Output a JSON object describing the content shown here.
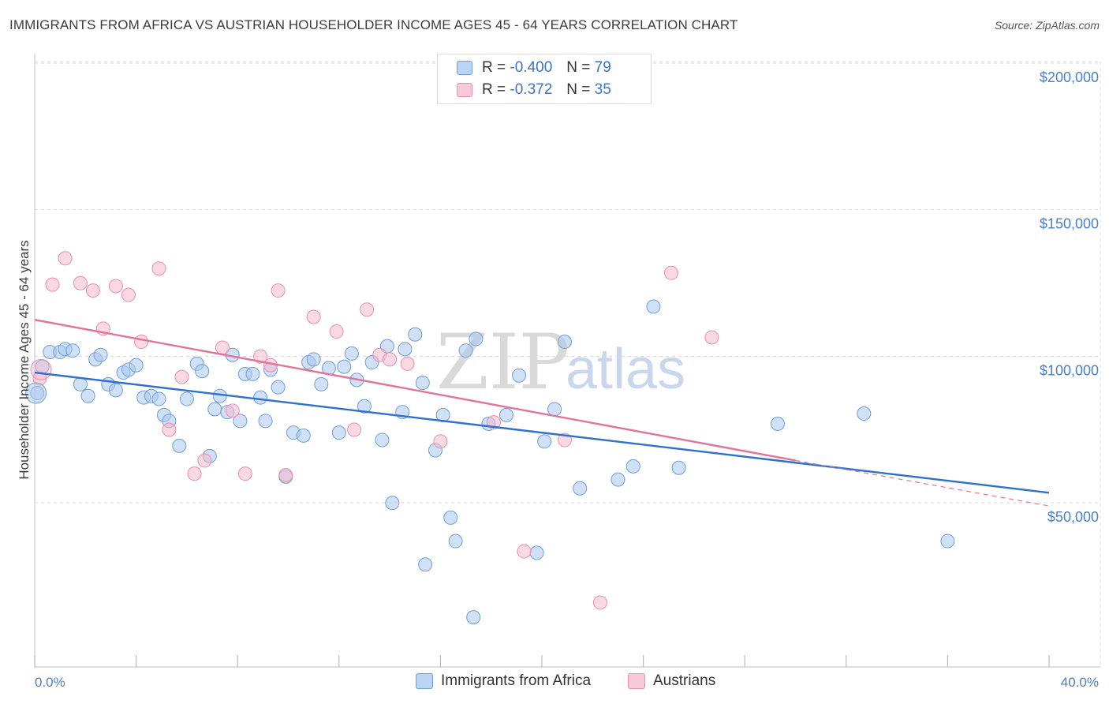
{
  "title": "IMMIGRANTS FROM AFRICA VS AUSTRIAN HOUSEHOLDER INCOME AGES 45 - 64 YEARS CORRELATION CHART",
  "source": "Source: ZipAtlas.com",
  "watermark": {
    "zip": "ZIP",
    "atlas": "atlas"
  },
  "colors": {
    "blue_fill": "#a9c8ef",
    "blue_stroke": "#6f9fd8",
    "blue_line": "#2f6fd0",
    "pink_fill": "#f6b9cc",
    "pink_stroke": "#ea8fae",
    "pink_line": "#e2739a",
    "tick_text": "#4a7fc9",
    "grid": "#d9d9d9"
  },
  "legend": {
    "rows": [
      {
        "r_label": "R = ",
        "r_value": "-0.400",
        "n_label": "N = ",
        "n_value": "79"
      },
      {
        "r_label": "R = ",
        "r_value": " -0.372",
        "n_label": "N = ",
        "n_value": "35"
      }
    ]
  },
  "chart_data": {
    "type": "scatter",
    "title": "IMMIGRANTS FROM AFRICA VS AUSTRIAN HOUSEHOLDER INCOME AGES 45 - 64 YEARS CORRELATION CHART",
    "xlabel": "",
    "ylabel": "Householder Income Ages 45 - 64 years",
    "xlim": [
      0,
      40
    ],
    "ylim": [
      5000,
      212000
    ],
    "x_tick_labels": [
      "0.0%",
      "40.0%"
    ],
    "y_ticks": [
      50000,
      100000,
      150000,
      200000
    ],
    "y_tick_labels": [
      "$50,000",
      "$100,000",
      "$150,000",
      "$200,000"
    ],
    "grid": "horizontal dashed",
    "legend_position": "top-center",
    "series": [
      {
        "name": "Immigrants from Africa",
        "color": "#a9c8ef",
        "points": [
          [
            0.1,
            92000
          ],
          [
            0.3,
            101000
          ],
          [
            0.6,
            106000
          ],
          [
            1.0,
            106000
          ],
          [
            1.2,
            107000
          ],
          [
            1.5,
            106500
          ],
          [
            1.8,
            95000
          ],
          [
            2.1,
            91000
          ],
          [
            2.4,
            103500
          ],
          [
            2.6,
            105000
          ],
          [
            2.9,
            95000
          ],
          [
            3.2,
            93000
          ],
          [
            3.5,
            99000
          ],
          [
            3.7,
            100000
          ],
          [
            4.0,
            101500
          ],
          [
            4.3,
            90500
          ],
          [
            4.6,
            91000
          ],
          [
            4.9,
            90000
          ],
          [
            5.1,
            84500
          ],
          [
            5.3,
            82500
          ],
          [
            5.7,
            74000
          ],
          [
            6.0,
            90000
          ],
          [
            6.4,
            102000
          ],
          [
            6.6,
            99500
          ],
          [
            6.9,
            70500
          ],
          [
            7.1,
            86500
          ],
          [
            7.3,
            91000
          ],
          [
            7.6,
            85500
          ],
          [
            7.8,
            105000
          ],
          [
            8.1,
            82500
          ],
          [
            8.3,
            98500
          ],
          [
            8.6,
            98500
          ],
          [
            8.9,
            90500
          ],
          [
            9.1,
            82500
          ],
          [
            9.3,
            100000
          ],
          [
            9.6,
            94000
          ],
          [
            9.9,
            63500
          ],
          [
            10.2,
            78500
          ],
          [
            10.6,
            77500
          ],
          [
            10.8,
            102500
          ],
          [
            11.0,
            103500
          ],
          [
            11.3,
            95000
          ],
          [
            11.6,
            100500
          ],
          [
            12.0,
            78500
          ],
          [
            12.2,
            101000
          ],
          [
            12.5,
            105500
          ],
          [
            12.7,
            96500
          ],
          [
            13.0,
            87500
          ],
          [
            13.3,
            102500
          ],
          [
            13.7,
            76000
          ],
          [
            13.9,
            108000
          ],
          [
            14.1,
            54500
          ],
          [
            14.5,
            85500
          ],
          [
            14.6,
            107000
          ],
          [
            15.0,
            112000
          ],
          [
            15.3,
            95500
          ],
          [
            15.4,
            33500
          ],
          [
            15.8,
            72500
          ],
          [
            16.1,
            84500
          ],
          [
            16.4,
            49500
          ],
          [
            16.6,
            41500
          ],
          [
            17.0,
            106500
          ],
          [
            17.3,
            15500
          ],
          [
            17.4,
            110500
          ],
          [
            17.9,
            81500
          ],
          [
            18.6,
            84500
          ],
          [
            19.1,
            98000
          ],
          [
            19.8,
            37500
          ],
          [
            20.1,
            75500
          ],
          [
            20.5,
            86500
          ],
          [
            20.9,
            109500
          ],
          [
            21.5,
            59500
          ],
          [
            23.0,
            62500
          ],
          [
            23.6,
            67000
          ],
          [
            24.4,
            121500
          ],
          [
            25.4,
            66500
          ],
          [
            29.3,
            81500
          ],
          [
            32.7,
            85000
          ],
          [
            36.0,
            41500
          ]
        ]
      },
      {
        "name": "Austrians",
        "color": "#f6b9cc",
        "points": [
          [
            0.2,
            97000
          ],
          [
            0.7,
            129000
          ],
          [
            1.2,
            138000
          ],
          [
            1.8,
            129500
          ],
          [
            2.3,
            127000
          ],
          [
            2.7,
            114000
          ],
          [
            3.2,
            128500
          ],
          [
            3.7,
            125500
          ],
          [
            4.2,
            109500
          ],
          [
            4.9,
            134500
          ],
          [
            5.3,
            79500
          ],
          [
            5.8,
            97500
          ],
          [
            6.3,
            64500
          ],
          [
            6.7,
            69000
          ],
          [
            7.4,
            107500
          ],
          [
            7.8,
            86000
          ],
          [
            8.3,
            64500
          ],
          [
            8.9,
            104500
          ],
          [
            9.3,
            101500
          ],
          [
            9.6,
            127000
          ],
          [
            9.9,
            64000
          ],
          [
            11.0,
            118000
          ],
          [
            11.9,
            113000
          ],
          [
            12.6,
            79500
          ],
          [
            13.1,
            120500
          ],
          [
            13.6,
            105000
          ],
          [
            14.0,
            103500
          ],
          [
            14.7,
            102000
          ],
          [
            16.0,
            75500
          ],
          [
            18.1,
            82000
          ],
          [
            19.3,
            38000
          ],
          [
            20.9,
            76000
          ],
          [
            22.3,
            20500
          ],
          [
            25.1,
            133000
          ],
          [
            26.7,
            111000
          ]
        ]
      }
    ],
    "trend_lines": [
      {
        "series": "Immigrants from Africa",
        "x": [
          0,
          40
        ],
        "y": [
          99000,
          58000
        ],
        "style": "solid"
      },
      {
        "series": "Austrians",
        "x": [
          0,
          30
        ],
        "y": [
          117000,
          69000
        ],
        "style": "solid"
      },
      {
        "series": "Austrians",
        "x": [
          30,
          40
        ],
        "y": [
          69000,
          53500
        ],
        "style": "dashed"
      }
    ]
  }
}
